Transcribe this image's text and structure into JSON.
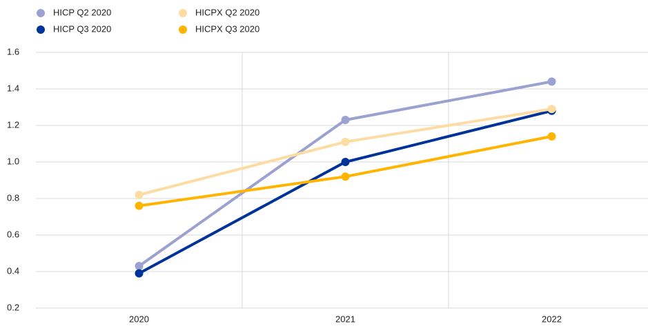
{
  "chart_data": {
    "type": "line",
    "categories": [
      "2020",
      "2021",
      "2022"
    ],
    "series": [
      {
        "name": "HICP Q2 2020",
        "color": "#9ba1d0",
        "values": [
          0.43,
          1.23,
          1.44
        ]
      },
      {
        "name": "HICP Q3 2020",
        "color": "#003399",
        "values": [
          0.39,
          1.0,
          1.28
        ]
      },
      {
        "name": "HICPX Q2 2020",
        "color": "#fddca4",
        "values": [
          0.82,
          1.11,
          1.29
        ]
      },
      {
        "name": "HICPX Q3 2020",
        "color": "#ffb400",
        "values": [
          0.76,
          0.92,
          1.14
        ]
      }
    ],
    "ylim": [
      0.2,
      1.6
    ],
    "yticks": [
      0.2,
      0.4,
      0.6,
      0.8,
      {
        "value": 1,
        "label": "1.0"
      },
      1.2,
      1.4,
      1.6
    ],
    "grid": true
  }
}
